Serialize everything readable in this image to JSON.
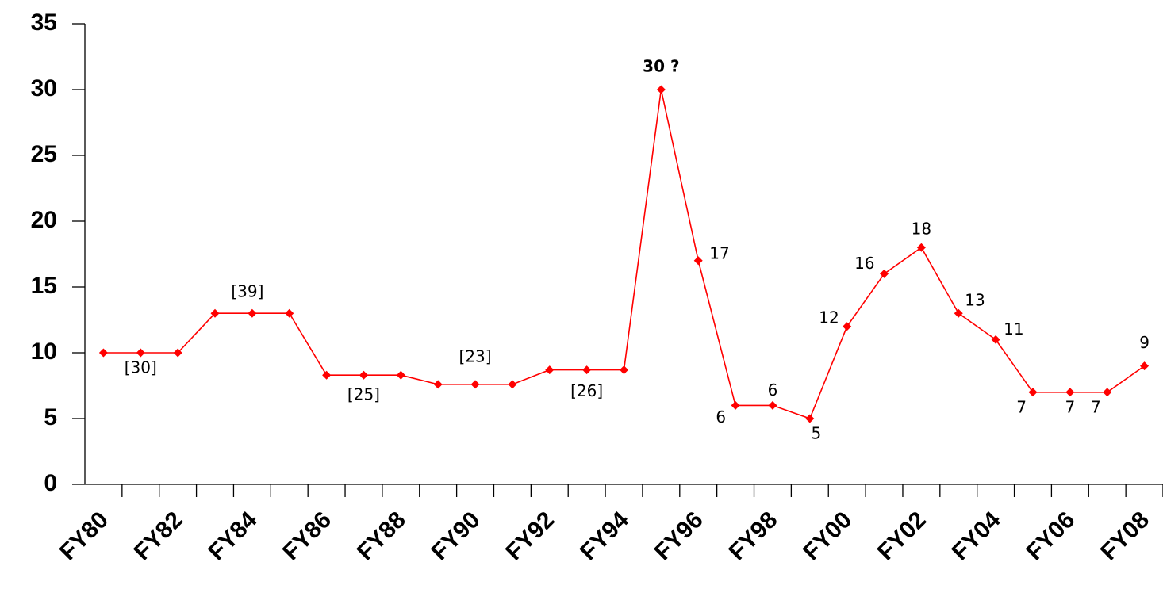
{
  "chart_data": {
    "type": "line",
    "categories": [
      "FY80",
      null,
      "FY82",
      null,
      "FY84",
      null,
      "FY86",
      null,
      "FY88",
      null,
      "FY90",
      null,
      "FY92",
      null,
      "FY94",
      null,
      "FY96",
      null,
      "FY98",
      null,
      "FY00",
      null,
      "FY02",
      null,
      "FY04",
      null,
      "FY06",
      null,
      "FY08"
    ],
    "series": [
      {
        "color": "#ff0000",
        "values": [
          10,
          10,
          10,
          13,
          13,
          13,
          8.3,
          8.3,
          8.3,
          7.6,
          7.6,
          7.6,
          8.7,
          8.7,
          8.7,
          30,
          17,
          6,
          6,
          5,
          12,
          16,
          18,
          13,
          11,
          7,
          7,
          7,
          9
        ],
        "value_labels": [
          null,
          null,
          null,
          null,
          null,
          null,
          null,
          null,
          null,
          null,
          null,
          null,
          null,
          null,
          null,
          "30 ?",
          "17",
          "6",
          "6",
          "5",
          "12",
          "16",
          "18",
          "13",
          "11",
          "7",
          "7",
          "7",
          "9"
        ]
      }
    ],
    "annotations": [
      "[30]",
      "[39]",
      "[25]",
      "[23]",
      "[26]"
    ],
    "ylim": [
      0,
      35
    ],
    "yticks": [
      0,
      5,
      10,
      15,
      20,
      25,
      30,
      35
    ],
    "grid": false
  }
}
